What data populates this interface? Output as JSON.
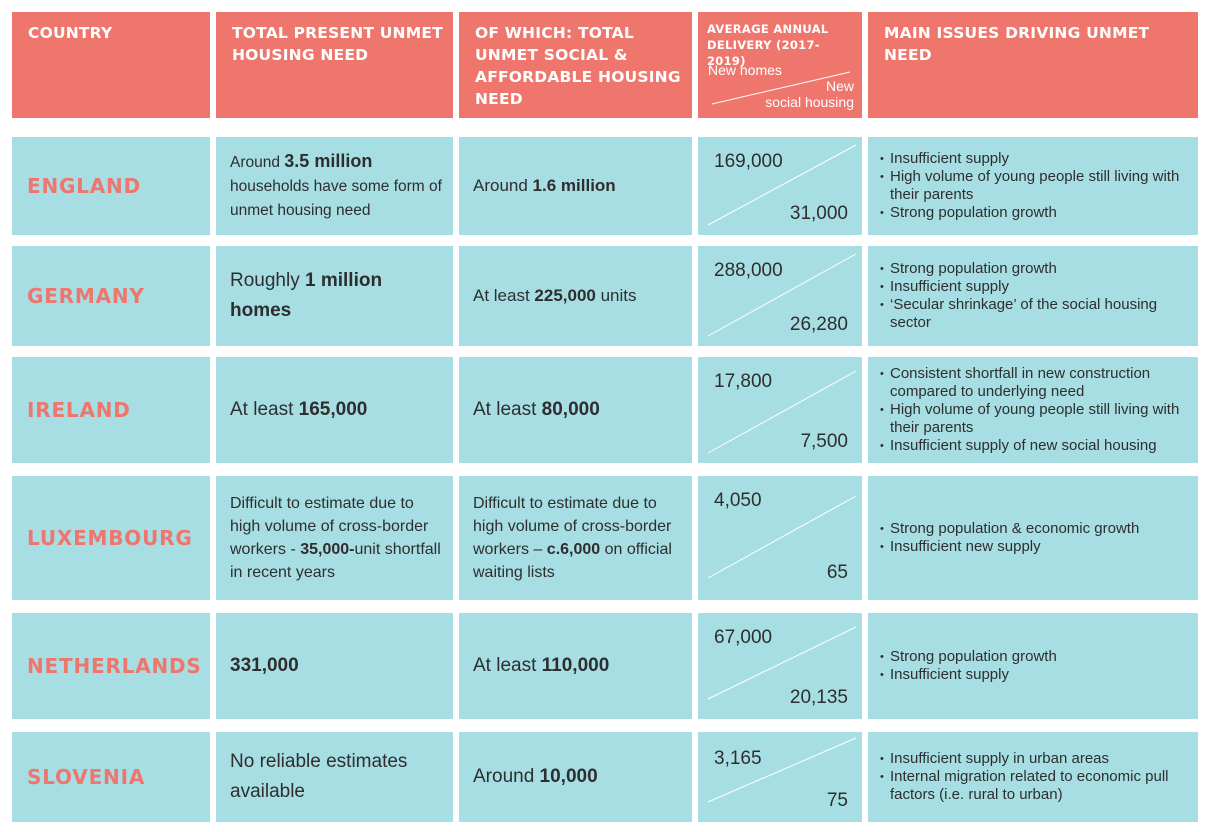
{
  "header": {
    "country": "COUNTRY",
    "total_need": "TOTAL PRESENT UNMET HOUSING NEED",
    "social_need": "OF WHICH: TOTAL UNMET SOCIAL & AFFORDABLE HOUSING NEED",
    "delivery": "AVERAGE ANNUAL DELIVERY (2017-2019)",
    "new_homes": "New homes",
    "new_social_line1": "New",
    "new_social_line2": "social housing",
    "issues": "MAIN ISSUES DRIVING UNMET NEED"
  },
  "rows": [
    {
      "country": "ENGLAND",
      "total_pre": "Around ",
      "total_bold": "3.5 million",
      "total_post": " households have some form of unmet housing need",
      "social_pre": "Around ",
      "social_bold": "1.6 million",
      "social_post": "",
      "new_homes": "169,000",
      "new_social": "31,000",
      "issues": [
        "Insufficient supply",
        "High volume of young people still living with their parents",
        "Strong population growth"
      ]
    },
    {
      "country": "GERMANY",
      "total_pre": "Roughly ",
      "total_bold": "1 million",
      "total_post": "",
      "total_bold2": "homes",
      "social_pre": "At least ",
      "social_bold": "225,000",
      "social_post": " units",
      "new_homes": "288,000",
      "new_social": "26,280",
      "issues": [
        "Strong population growth",
        "Insufficient supply",
        "‘Secular shrinkage’ of the social housing sector"
      ]
    },
    {
      "country": "IRELAND",
      "total_pre": "At least ",
      "total_bold": "165,000",
      "total_post": "",
      "social_pre": "At least ",
      "social_bold": "80,000",
      "social_post": "",
      "new_homes": "17,800",
      "new_social": "7,500",
      "issues": [
        "Consistent shortfall in new construction compared to underlying need",
        "High volume of young people still living with their parents",
        "Insufficient supply of new social housing"
      ]
    },
    {
      "country": "LUXEMBOURG",
      "total_pre": "Difficult to estimate due to high volume of cross-border workers - ",
      "total_bold": "35,000-",
      "total_post": "unit shortfall in recent years",
      "social_pre": "Difficult to estimate due to high volume of cross-border workers – ",
      "social_bold": "c.6,000",
      "social_post": " on official waiting lists",
      "new_homes": "4,050",
      "new_social": "65",
      "issues": [
        "Strong population & economic growth",
        "Insufficient new supply"
      ]
    },
    {
      "country": "NETHERLANDS",
      "total_pre": "",
      "total_bold": "331,000",
      "total_post": "",
      "social_pre": "At least ",
      "social_bold": "110,000",
      "social_post": "",
      "new_homes": "67,000",
      "new_social": "20,135",
      "issues": [
        "Strong population growth",
        "Insufficient supply"
      ]
    },
    {
      "country": "SLOVENIA",
      "total_pre": "No reliable estimates available",
      "total_bold": "",
      "total_post": "",
      "social_pre": "Around ",
      "social_bold": "10,000",
      "social_post": "",
      "new_homes": "3,165",
      "new_social": "75",
      "issues": [
        "Insufficient supply in urban areas",
        "Internal migration related to economic pull factors (i.e. rural to urban)"
      ]
    }
  ]
}
